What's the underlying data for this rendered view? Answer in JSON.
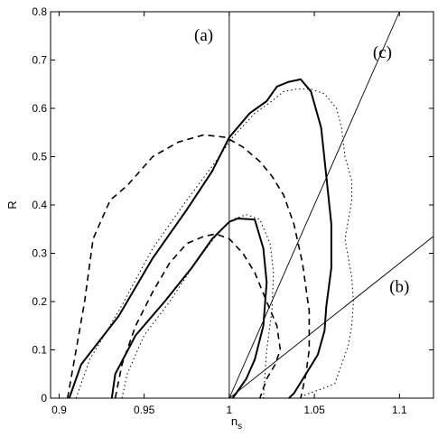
{
  "chart_data": {
    "type": "line",
    "title": "",
    "xlabel": "n",
    "xlabel_subscript": "s",
    "ylabel": "R",
    "xlim": [
      0.895,
      1.12
    ],
    "ylim": [
      0,
      0.8
    ],
    "xticks": [
      0.9,
      0.95,
      1,
      1.05,
      1.1
    ],
    "xtick_labels": [
      "0.9",
      "0.95",
      "1",
      "1.05",
      "1.1"
    ],
    "yticks": [
      0,
      0.1,
      0.2,
      0.3,
      0.4,
      0.5,
      0.6,
      0.7,
      0.8
    ],
    "ytick_labels": [
      "0",
      "0.1",
      "0.2",
      "0.3",
      "0.4",
      "0.5",
      "0.6",
      "0.7",
      "0.8"
    ],
    "grid": false,
    "legend": "none",
    "annotations": [
      {
        "text": "(a)",
        "x": 0.985,
        "y": 0.74
      },
      {
        "text": "(c)",
        "x": 1.09,
        "y": 0.705
      },
      {
        "text": "(b)",
        "x": 1.1,
        "y": 0.22
      }
    ],
    "reference_lines": [
      {
        "label": "(a)",
        "points": [
          [
            1.0,
            0.0
          ],
          [
            1.0,
            0.8
          ]
        ]
      },
      {
        "label": "(c)",
        "points": [
          [
            1.0,
            0.0
          ],
          [
            1.1,
            0.8
          ]
        ]
      },
      {
        "label": "(b)",
        "points": [
          [
            1.0,
            0.0
          ],
          [
            1.12,
            0.335
          ]
        ]
      }
    ],
    "series": [
      {
        "style": "solid",
        "closed": false,
        "x": [
          0.906,
          0.913,
          0.935,
          0.955,
          0.975,
          0.99,
          1.0,
          1.012,
          1.022,
          1.028,
          1.035,
          1.042,
          1.048,
          1.054,
          1.057,
          1.06,
          1.06,
          1.057,
          1.056,
          1.052,
          1.045,
          1.038,
          1.035
        ],
        "y": [
          0.0,
          0.07,
          0.17,
          0.29,
          0.39,
          0.47,
          0.54,
          0.59,
          0.615,
          0.645,
          0.655,
          0.66,
          0.635,
          0.56,
          0.46,
          0.36,
          0.27,
          0.19,
          0.14,
          0.09,
          0.05,
          0.01,
          0.0
        ]
      },
      {
        "style": "solid",
        "closed": false,
        "x": [
          0.931,
          0.933,
          0.945,
          0.962,
          0.978,
          0.99,
          1.0,
          1.005,
          1.015,
          1.02,
          1.022,
          1.02,
          1.015,
          1.01,
          1.005,
          1.002
        ],
        "y": [
          0.0,
          0.05,
          0.13,
          0.2,
          0.27,
          0.33,
          0.365,
          0.372,
          0.37,
          0.31,
          0.24,
          0.15,
          0.08,
          0.04,
          0.015,
          0.0
        ]
      },
      {
        "style": "dashed",
        "closed": false,
        "x": [
          0.905,
          0.91,
          0.915,
          0.92,
          0.93,
          0.94,
          0.955,
          0.97,
          0.985,
          0.998,
          1.008,
          1.018,
          1.025,
          1.032,
          1.038,
          1.043,
          1.047,
          1.047,
          1.045,
          1.042
        ],
        "y": [
          0.0,
          0.1,
          0.2,
          0.33,
          0.41,
          0.44,
          0.5,
          0.53,
          0.545,
          0.54,
          0.52,
          0.49,
          0.46,
          0.42,
          0.36,
          0.28,
          0.18,
          0.1,
          0.05,
          0.0
        ]
      },
      {
        "style": "dashed",
        "closed": false,
        "x": [
          0.933,
          0.937,
          0.945,
          0.955,
          0.965,
          0.975,
          0.985,
          0.992,
          1.0,
          1.008,
          1.015,
          1.022,
          1.028,
          1.03,
          1.027,
          1.022,
          1.018
        ],
        "y": [
          0.0,
          0.07,
          0.15,
          0.22,
          0.28,
          0.32,
          0.335,
          0.34,
          0.33,
          0.3,
          0.26,
          0.2,
          0.15,
          0.1,
          0.07,
          0.04,
          0.0
        ]
      },
      {
        "style": "dotted",
        "closed": false,
        "x": [
          0.91,
          0.918,
          0.935,
          0.955,
          0.975,
          0.99,
          1.002,
          1.015,
          1.025,
          1.032,
          1.04,
          1.048,
          1.056,
          1.063,
          1.066,
          1.068,
          1.072,
          1.072,
          1.07,
          1.068,
          1.07,
          1.072,
          1.073,
          1.072,
          1.07,
          1.068,
          1.066,
          1.064,
          1.062,
          1.055,
          1.047,
          1.04
        ],
        "y": [
          0.0,
          0.08,
          0.18,
          0.31,
          0.41,
          0.48,
          0.54,
          0.59,
          0.615,
          0.635,
          0.64,
          0.64,
          0.63,
          0.6,
          0.56,
          0.5,
          0.45,
          0.41,
          0.37,
          0.33,
          0.29,
          0.25,
          0.2,
          0.15,
          0.11,
          0.09,
          0.07,
          0.05,
          0.03,
          0.02,
          0.01,
          0.0
        ]
      },
      {
        "style": "dotted",
        "closed": false,
        "x": [
          0.937,
          0.94,
          0.95,
          0.965,
          0.98,
          0.993,
          1.002,
          1.01,
          1.018,
          1.024,
          1.026,
          1.025,
          1.022,
          1.02
        ],
        "y": [
          0.0,
          0.05,
          0.13,
          0.2,
          0.28,
          0.34,
          0.37,
          0.38,
          0.37,
          0.32,
          0.26,
          0.18,
          0.1,
          0.0
        ]
      }
    ]
  }
}
